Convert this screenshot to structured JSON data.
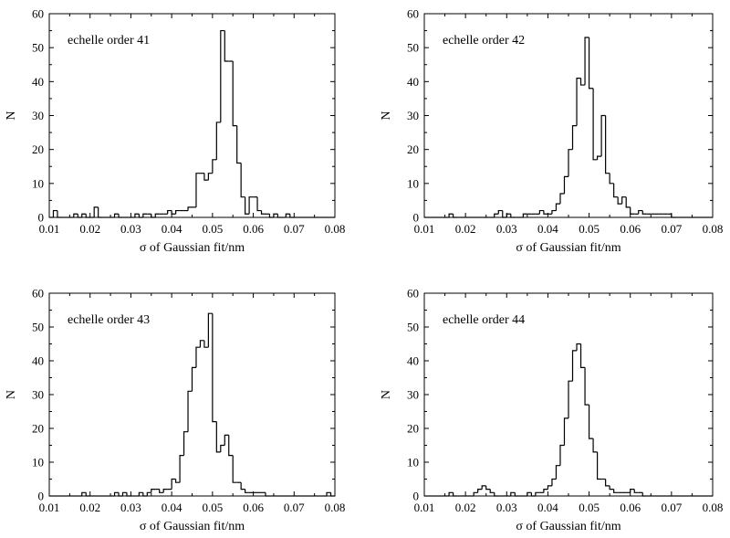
{
  "chart_data": [
    {
      "type": "histogram",
      "panel_label": "echelle order 41",
      "xlabel": "σ of Gaussian fit/nm",
      "ylabel": "N",
      "xlim": [
        0.01,
        0.08
      ],
      "ylim": [
        0,
        60
      ],
      "xticks": [
        "0.01",
        "0.02",
        "0.03",
        "0.04",
        "0.05",
        "0.06",
        "0.07",
        "0.08"
      ],
      "yticks": [
        "0",
        "10",
        "20",
        "30",
        "40",
        "50",
        "60"
      ],
      "bin_start": 0.01,
      "bin_width": 0.001,
      "counts": [
        0,
        2,
        0,
        0,
        0,
        0,
        1,
        0,
        1,
        0,
        0,
        3,
        0,
        0,
        0,
        0,
        1,
        0,
        0,
        0,
        0,
        1,
        0,
        1,
        1,
        0,
        1,
        1,
        1,
        2,
        1,
        2,
        2,
        2,
        3,
        3,
        13,
        13,
        11,
        13,
        17,
        28,
        55,
        46,
        46,
        27,
        16,
        6,
        1,
        6,
        6,
        2,
        1,
        1,
        0,
        1,
        0,
        0,
        1,
        0,
        0,
        0,
        0,
        0,
        0,
        0,
        0,
        0,
        0,
        0
      ]
    },
    {
      "type": "histogram",
      "panel_label": "echelle order 42",
      "xlabel": "σ of Gaussian fit/nm",
      "ylabel": "N",
      "xlim": [
        0.01,
        0.08
      ],
      "ylim": [
        0,
        60
      ],
      "xticks": [
        "0.01",
        "0.02",
        "0.03",
        "0.04",
        "0.05",
        "0.06",
        "0.07",
        "0.08"
      ],
      "yticks": [
        "0",
        "10",
        "20",
        "30",
        "40",
        "50",
        "60"
      ],
      "bin_start": 0.01,
      "bin_width": 0.001,
      "counts": [
        0,
        0,
        0,
        0,
        0,
        0,
        1,
        0,
        0,
        0,
        0,
        0,
        0,
        0,
        0,
        0,
        0,
        1,
        2,
        0,
        1,
        0,
        0,
        0,
        1,
        1,
        1,
        1,
        2,
        1,
        1,
        2,
        4,
        7,
        12,
        20,
        27,
        41,
        39,
        53,
        38,
        17,
        18,
        30,
        13,
        10,
        6,
        4,
        6,
        3,
        1,
        1,
        2,
        1,
        1,
        1,
        1,
        1,
        1,
        1,
        0,
        0,
        0,
        0,
        0,
        0,
        0,
        0,
        0,
        0
      ]
    },
    {
      "type": "histogram",
      "panel_label": "echelle order 43",
      "xlabel": "σ of Gaussian fit/nm",
      "ylabel": "N",
      "xlim": [
        0.01,
        0.08
      ],
      "ylim": [
        0,
        60
      ],
      "xticks": [
        "0.01",
        "0.02",
        "0.03",
        "0.04",
        "0.05",
        "0.06",
        "0.07",
        "0.08"
      ],
      "yticks": [
        "0",
        "10",
        "20",
        "30",
        "40",
        "50",
        "60"
      ],
      "bin_start": 0.01,
      "bin_width": 0.001,
      "counts": [
        0,
        0,
        0,
        0,
        0,
        0,
        0,
        0,
        1,
        0,
        0,
        0,
        0,
        0,
        0,
        0,
        1,
        0,
        1,
        0,
        0,
        0,
        1,
        0,
        1,
        2,
        2,
        1,
        2,
        2,
        5,
        4,
        12,
        19,
        31,
        38,
        44,
        46,
        44,
        54,
        22,
        13,
        15,
        18,
        12,
        4,
        4,
        2,
        1,
        1,
        1,
        1,
        1,
        0,
        0,
        0,
        0,
        0,
        0,
        0,
        0,
        0,
        0,
        0,
        0,
        0,
        0,
        0,
        1,
        0
      ]
    },
    {
      "type": "histogram",
      "panel_label": "echelle order 44",
      "xlabel": "σ of Gaussian fit/nm",
      "ylabel": "N",
      "xlim": [
        0.01,
        0.08
      ],
      "ylim": [
        0,
        60
      ],
      "xticks": [
        "0.01",
        "0.02",
        "0.03",
        "0.04",
        "0.05",
        "0.06",
        "0.07",
        "0.08"
      ],
      "yticks": [
        "0",
        "10",
        "20",
        "30",
        "40",
        "50",
        "60"
      ],
      "bin_start": 0.01,
      "bin_width": 0.001,
      "counts": [
        0,
        0,
        0,
        0,
        0,
        0,
        1,
        0,
        0,
        0,
        0,
        0,
        1,
        2,
        3,
        2,
        1,
        0,
        0,
        0,
        0,
        1,
        0,
        0,
        0,
        1,
        0,
        1,
        1,
        2,
        3,
        5,
        9,
        15,
        23,
        34,
        43,
        45,
        38,
        27,
        17,
        13,
        5,
        5,
        3,
        2,
        1,
        1,
        1,
        1,
        2,
        1,
        1,
        0,
        0,
        0,
        0,
        0,
        0,
        0,
        0,
        0,
        0,
        0,
        0,
        0,
        0,
        0,
        0,
        0
      ]
    }
  ]
}
